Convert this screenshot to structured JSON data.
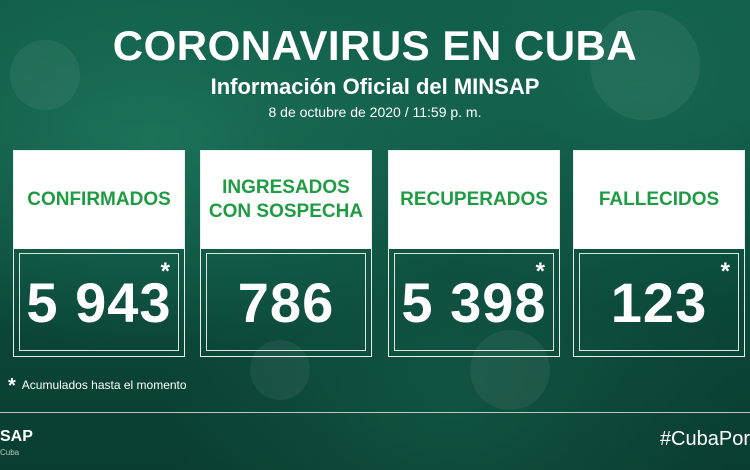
{
  "header": {
    "title": "CORONAVIRUS EN CUBA",
    "subtitle": "Información Oficial del MINSAP",
    "date": "8 de octubre de 2020 / 11:59 p. m."
  },
  "cards": [
    {
      "label": "CONFIRMADOS",
      "value": "5 943",
      "star": "*"
    },
    {
      "label": "INGRESADOS\nCON SOSPECHA",
      "value": "786",
      "star": ""
    },
    {
      "label": "RECUPERADOS",
      "value": "5 398",
      "star": "*"
    },
    {
      "label": "FALLECIDOS",
      "value": "123",
      "star": "*"
    }
  ],
  "footnote": {
    "star": "*",
    "text": "Acumulados hasta el momento"
  },
  "footer": {
    "logo": "SAP",
    "logo_small": "Cuba",
    "hashtag": "#CubaPor"
  },
  "colors": {
    "label_green": "#1f9c43",
    "background": "#0f5a47"
  }
}
